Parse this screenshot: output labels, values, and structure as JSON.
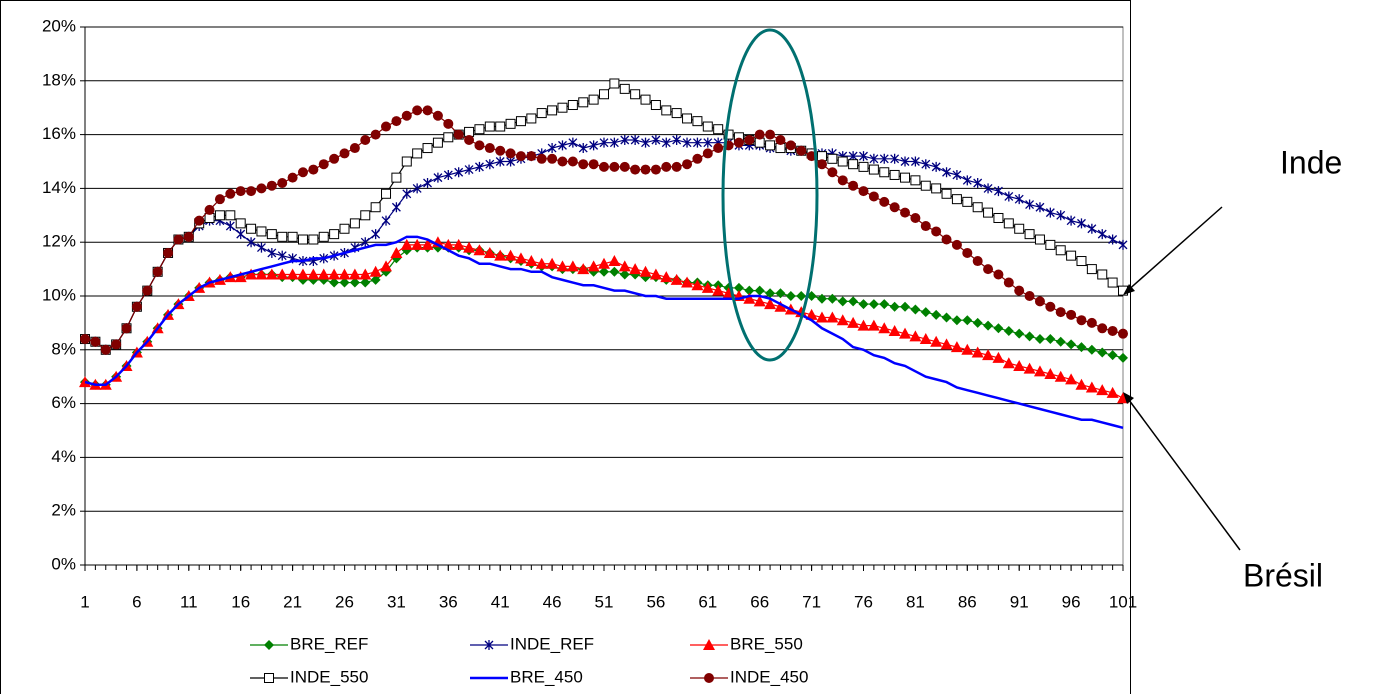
{
  "chart_data": {
    "type": "line",
    "x": [
      1,
      2,
      3,
      4,
      5,
      6,
      7,
      8,
      9,
      10,
      11,
      12,
      13,
      14,
      15,
      16,
      17,
      18,
      19,
      20,
      21,
      22,
      23,
      24,
      25,
      26,
      27,
      28,
      29,
      30,
      31,
      32,
      33,
      34,
      35,
      36,
      37,
      38,
      39,
      40,
      41,
      42,
      43,
      44,
      45,
      46,
      47,
      48,
      49,
      50,
      51,
      52,
      53,
      54,
      55,
      56,
      57,
      58,
      59,
      60,
      61,
      62,
      63,
      64,
      65,
      66,
      67,
      68,
      69,
      70,
      71,
      72,
      73,
      74,
      75,
      76,
      77,
      78,
      79,
      80,
      81,
      82,
      83,
      84,
      85,
      86,
      87,
      88,
      89,
      90,
      91,
      92,
      93,
      94,
      95,
      96,
      97,
      98,
      99,
      100,
      101
    ],
    "xlim": [
      1,
      101
    ],
    "xticks": [
      1,
      6,
      11,
      16,
      21,
      26,
      31,
      36,
      41,
      46,
      51,
      56,
      61,
      66,
      71,
      76,
      81,
      86,
      91,
      96,
      101
    ],
    "ylim": [
      0,
      20
    ],
    "yticks": [
      {
        "value": 0,
        "label": "0%"
      },
      {
        "value": 2,
        "label": "2%"
      },
      {
        "value": 4,
        "label": "4%"
      },
      {
        "value": 6,
        "label": "6%"
      },
      {
        "value": 8,
        "label": "8%"
      },
      {
        "value": 10,
        "label": "10%"
      },
      {
        "value": 12,
        "label": "12%"
      },
      {
        "value": 14,
        "label": "14%"
      },
      {
        "value": 16,
        "label": "16%"
      },
      {
        "value": 18,
        "label": "18%"
      },
      {
        "value": 20,
        "label": "20%"
      }
    ],
    "grid": true,
    "legend": "bottom",
    "series": [
      {
        "name": "BRE_REF",
        "color": "#008000",
        "marker": "diamond",
        "values": [
          6.8,
          6.7,
          6.7,
          7.0,
          7.4,
          7.9,
          8.3,
          8.8,
          9.3,
          9.7,
          10.0,
          10.3,
          10.5,
          10.6,
          10.7,
          10.7,
          10.8,
          10.8,
          10.8,
          10.7,
          10.7,
          10.6,
          10.6,
          10.6,
          10.5,
          10.5,
          10.5,
          10.5,
          10.6,
          10.9,
          11.4,
          11.7,
          11.8,
          11.8,
          11.8,
          11.8,
          11.8,
          11.7,
          11.7,
          11.6,
          11.5,
          11.4,
          11.3,
          11.2,
          11.1,
          11.1,
          11.0,
          11.0,
          11.0,
          10.9,
          10.9,
          10.9,
          10.8,
          10.8,
          10.7,
          10.7,
          10.6,
          10.6,
          10.5,
          10.5,
          10.4,
          10.4,
          10.3,
          10.3,
          10.2,
          10.2,
          10.1,
          10.1,
          10.0,
          10.0,
          10.0,
          9.9,
          9.9,
          9.8,
          9.8,
          9.7,
          9.7,
          9.7,
          9.6,
          9.6,
          9.5,
          9.4,
          9.3,
          9.2,
          9.1,
          9.1,
          9.0,
          8.9,
          8.8,
          8.7,
          8.6,
          8.5,
          8.4,
          8.4,
          8.3,
          8.2,
          8.1,
          8.0,
          7.9,
          7.8,
          7.7
        ]
      },
      {
        "name": "INDE_REF",
        "color": "#000080",
        "marker": "star",
        "values": [
          8.4,
          8.3,
          8.0,
          8.2,
          8.8,
          9.6,
          10.2,
          10.9,
          11.6,
          12.1,
          12.2,
          12.6,
          12.8,
          12.8,
          12.6,
          12.3,
          12.0,
          11.8,
          11.6,
          11.5,
          11.4,
          11.3,
          11.3,
          11.4,
          11.5,
          11.6,
          11.8,
          12.0,
          12.3,
          12.8,
          13.3,
          13.8,
          14.0,
          14.2,
          14.4,
          14.5,
          14.6,
          14.7,
          14.8,
          14.9,
          15.0,
          15.0,
          15.1,
          15.2,
          15.3,
          15.5,
          15.6,
          15.7,
          15.5,
          15.6,
          15.7,
          15.7,
          15.8,
          15.8,
          15.7,
          15.8,
          15.7,
          15.8,
          15.7,
          15.7,
          15.7,
          15.7,
          15.7,
          15.6,
          15.6,
          15.6,
          15.5,
          15.5,
          15.4,
          15.4,
          15.3,
          15.3,
          15.3,
          15.2,
          15.2,
          15.2,
          15.1,
          15.1,
          15.1,
          15.0,
          15.0,
          14.9,
          14.8,
          14.6,
          14.5,
          14.3,
          14.2,
          14.0,
          13.9,
          13.7,
          13.6,
          13.4,
          13.3,
          13.1,
          13.0,
          12.8,
          12.7,
          12.5,
          12.3,
          12.1,
          11.9
        ]
      },
      {
        "name": "BRE_550",
        "color": "#ff0000",
        "marker": "triangle",
        "values": [
          6.8,
          6.7,
          6.7,
          7.0,
          7.4,
          7.9,
          8.3,
          8.8,
          9.3,
          9.7,
          10.0,
          10.3,
          10.5,
          10.6,
          10.7,
          10.7,
          10.8,
          10.8,
          10.8,
          10.8,
          10.8,
          10.8,
          10.8,
          10.8,
          10.8,
          10.8,
          10.8,
          10.8,
          10.9,
          11.1,
          11.6,
          11.9,
          11.9,
          11.9,
          12.0,
          11.9,
          11.9,
          11.8,
          11.7,
          11.6,
          11.5,
          11.5,
          11.4,
          11.3,
          11.2,
          11.2,
          11.1,
          11.1,
          11.0,
          11.1,
          11.2,
          11.3,
          11.1,
          11.0,
          10.9,
          10.8,
          10.7,
          10.6,
          10.5,
          10.4,
          10.3,
          10.2,
          10.1,
          10.0,
          9.9,
          9.8,
          9.7,
          9.6,
          9.5,
          9.4,
          9.3,
          9.2,
          9.2,
          9.1,
          9.0,
          8.9,
          8.9,
          8.8,
          8.7,
          8.6,
          8.5,
          8.4,
          8.3,
          8.2,
          8.1,
          8.0,
          7.9,
          7.8,
          7.7,
          7.5,
          7.4,
          7.3,
          7.2,
          7.1,
          7.0,
          6.9,
          6.7,
          6.6,
          6.5,
          6.4,
          6.2
        ]
      },
      {
        "name": "INDE_550",
        "color": "#000000",
        "marker": "square",
        "values": [
          8.4,
          8.3,
          8.0,
          8.2,
          8.8,
          9.6,
          10.2,
          10.9,
          11.6,
          12.1,
          12.2,
          12.7,
          12.9,
          13.0,
          13.0,
          12.7,
          12.5,
          12.4,
          12.3,
          12.2,
          12.2,
          12.1,
          12.1,
          12.2,
          12.3,
          12.5,
          12.7,
          13.0,
          13.3,
          13.8,
          14.4,
          15.0,
          15.3,
          15.5,
          15.7,
          15.9,
          16.0,
          16.1,
          16.2,
          16.3,
          16.3,
          16.4,
          16.5,
          16.6,
          16.8,
          16.9,
          17.0,
          17.1,
          17.2,
          17.3,
          17.5,
          17.9,
          17.7,
          17.5,
          17.3,
          17.1,
          16.9,
          16.8,
          16.6,
          16.5,
          16.3,
          16.2,
          16.0,
          15.9,
          15.8,
          15.7,
          15.6,
          15.5,
          15.5,
          15.4,
          15.3,
          15.2,
          15.1,
          15.0,
          14.9,
          14.8,
          14.7,
          14.6,
          14.5,
          14.4,
          14.3,
          14.1,
          14.0,
          13.8,
          13.6,
          13.5,
          13.3,
          13.1,
          12.9,
          12.7,
          12.5,
          12.3,
          12.1,
          11.9,
          11.7,
          11.5,
          11.3,
          11.0,
          10.8,
          10.5,
          10.2
        ]
      },
      {
        "name": "BRE_450",
        "color": "#0000ff",
        "marker": "none",
        "values": [
          6.8,
          6.7,
          6.7,
          7.0,
          7.4,
          7.9,
          8.3,
          8.8,
          9.3,
          9.7,
          10.0,
          10.3,
          10.5,
          10.6,
          10.7,
          10.8,
          10.9,
          11.0,
          11.1,
          11.2,
          11.3,
          11.3,
          11.4,
          11.4,
          11.5,
          11.6,
          11.7,
          11.8,
          11.9,
          11.9,
          12.0,
          12.2,
          12.2,
          12.1,
          11.9,
          11.7,
          11.5,
          11.4,
          11.2,
          11.2,
          11.1,
          11.0,
          11.0,
          10.9,
          10.9,
          10.7,
          10.6,
          10.5,
          10.4,
          10.4,
          10.3,
          10.2,
          10.2,
          10.1,
          10.0,
          10.0,
          9.9,
          9.9,
          9.9,
          9.9,
          9.9,
          9.9,
          9.9,
          9.9,
          10.0,
          10.0,
          9.9,
          9.7,
          9.5,
          9.3,
          9.1,
          8.8,
          8.6,
          8.4,
          8.1,
          8.0,
          7.8,
          7.7,
          7.5,
          7.4,
          7.2,
          7.0,
          6.9,
          6.8,
          6.6,
          6.5,
          6.4,
          6.3,
          6.2,
          6.1,
          6.0,
          5.9,
          5.8,
          5.7,
          5.6,
          5.5,
          5.4,
          5.4,
          5.3,
          5.2,
          5.1
        ]
      },
      {
        "name": "INDE_450",
        "color": "#800000",
        "marker": "circle",
        "values": [
          8.4,
          8.3,
          8.0,
          8.2,
          8.8,
          9.6,
          10.2,
          10.9,
          11.6,
          12.1,
          12.2,
          12.8,
          13.2,
          13.6,
          13.8,
          13.9,
          13.9,
          14.0,
          14.1,
          14.2,
          14.4,
          14.6,
          14.7,
          14.9,
          15.1,
          15.3,
          15.5,
          15.8,
          16.0,
          16.3,
          16.5,
          16.7,
          16.9,
          16.9,
          16.7,
          16.4,
          16.0,
          15.8,
          15.6,
          15.5,
          15.4,
          15.3,
          15.2,
          15.2,
          15.1,
          15.1,
          15.0,
          15.0,
          14.9,
          14.9,
          14.8,
          14.8,
          14.8,
          14.7,
          14.7,
          14.7,
          14.8,
          14.8,
          14.9,
          15.1,
          15.3,
          15.5,
          15.6,
          15.7,
          15.8,
          16.0,
          16.0,
          15.8,
          15.6,
          15.4,
          15.2,
          14.9,
          14.6,
          14.3,
          14.1,
          13.9,
          13.7,
          13.5,
          13.3,
          13.1,
          12.9,
          12.6,
          12.4,
          12.1,
          11.9,
          11.6,
          11.3,
          11.0,
          10.8,
          10.5,
          10.2,
          10.0,
          9.8,
          9.6,
          9.4,
          9.3,
          9.1,
          9.0,
          8.8,
          8.7,
          8.6
        ]
      }
    ],
    "annotations": [
      {
        "text": "Inde"
      },
      {
        "text": "Brésil"
      }
    ]
  }
}
